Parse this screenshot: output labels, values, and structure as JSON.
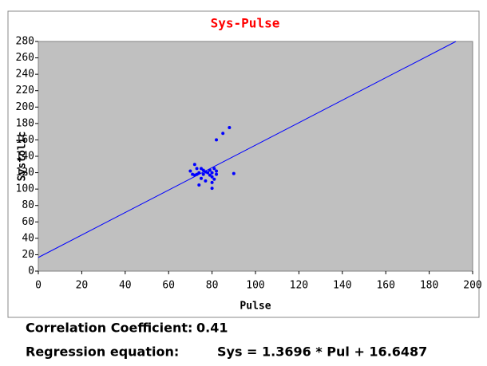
{
  "chart_data": {
    "type": "scatter",
    "title": "Sys-Pulse",
    "xlabel": "Pulse",
    "ylabel": "Systolic",
    "color": "#0000ff",
    "background": "#c0c0c0",
    "x": [
      70,
      71,
      72,
      72,
      73,
      73,
      74,
      74,
      75,
      75,
      76,
      76,
      77,
      77,
      78,
      79,
      79,
      80,
      80,
      80,
      80,
      81,
      81,
      82,
      82,
      82,
      85,
      88,
      90
    ],
    "values": [
      122,
      118,
      130,
      117,
      125,
      118,
      105,
      120,
      125,
      113,
      118,
      123,
      110,
      121,
      120,
      123,
      117,
      115,
      101,
      108,
      120,
      125,
      112,
      118,
      122,
      160,
      168,
      175,
      119
    ],
    "xlim": [
      0,
      200
    ],
    "xticks": [
      0,
      20,
      40,
      60,
      80,
      100,
      120,
      140,
      160,
      180,
      200
    ],
    "ylim": [
      0,
      280
    ],
    "yticks": [
      0,
      20,
      40,
      60,
      80,
      100,
      120,
      140,
      160,
      180,
      200,
      220,
      240,
      260,
      280
    ],
    "regression": {
      "slope": 1.3696,
      "intercept": 16.6487,
      "label": "Sys = 1.3696 * Pul + 16.6487",
      "caption": "Regression equation:"
    },
    "correlation": {
      "caption": "Correlation Coefficient:",
      "value": 0.41
    }
  }
}
